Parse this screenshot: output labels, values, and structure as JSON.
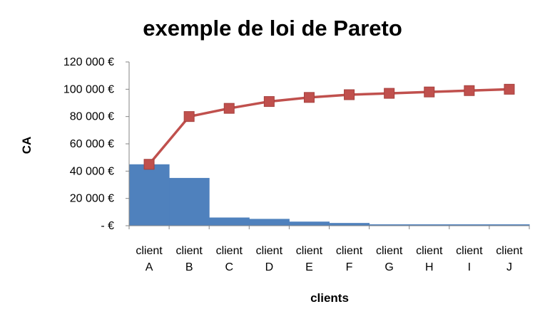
{
  "chart_data": {
    "type": "bar",
    "title": "exemple de loi de Pareto",
    "xlabel": "clients",
    "ylabel": "CA",
    "categories": [
      [
        "client",
        "A"
      ],
      [
        "client",
        "B"
      ],
      [
        "client",
        "C"
      ],
      [
        "client",
        "D"
      ],
      [
        "client",
        "E"
      ],
      [
        "client",
        "F"
      ],
      [
        "client",
        "G"
      ],
      [
        "client",
        "H"
      ],
      [
        "client",
        "I"
      ],
      [
        "client",
        "J"
      ]
    ],
    "ylim": [
      0,
      120000
    ],
    "yticks": [
      0,
      20000,
      40000,
      60000,
      80000,
      100000,
      120000
    ],
    "ytick_labels": [
      "-  €",
      "20 000 €",
      "40 000 €",
      "60 000 €",
      "80 000 €",
      "100 000 €",
      "120 000 €"
    ],
    "series": [
      {
        "type": "bar",
        "color": "#4F81BD",
        "values": [
          45000,
          35000,
          6000,
          5000,
          3000,
          2000,
          1000,
          1000,
          1000,
          1000
        ]
      },
      {
        "type": "line",
        "color": "#C0504D",
        "marker": "square",
        "values": [
          45000,
          80000,
          86000,
          91000,
          94000,
          96000,
          97000,
          98000,
          99000,
          100000
        ]
      }
    ],
    "grid": false,
    "legend": "none"
  }
}
